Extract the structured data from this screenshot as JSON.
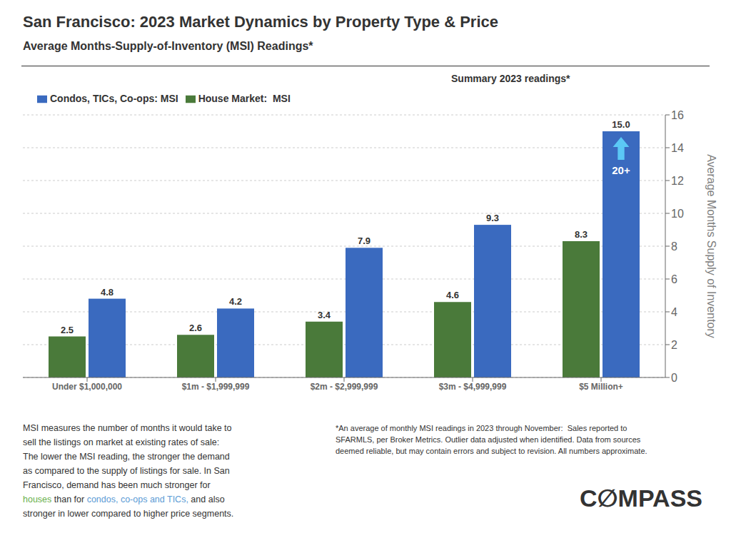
{
  "chart_data": {
    "type": "bar",
    "title": "San Francisco: 2023 Market Dynamics by Property Type & Price",
    "subtitle": "Average Months-Supply-of-Inventory (MSI) Readings*",
    "categories": [
      "Under $1,000,000",
      "$1m - $1,999,999",
      "$2m - $2,999,999",
      "$3m - $4,999,999",
      "$5 Million+"
    ],
    "series": [
      {
        "name": "House Market:  MSI",
        "color": "#4a7a3a",
        "values": [
          2.5,
          2.6,
          3.4,
          4.6,
          8.3
        ]
      },
      {
        "name": "Condos, TICs, Co-ops: MSI",
        "color": "#3a6abf",
        "values": [
          4.8,
          4.2,
          7.9,
          9.3,
          15.0
        ],
        "value_labels": [
          "4.8",
          "4.2",
          "7.9",
          "9.3",
          "15.0"
        ]
      }
    ],
    "ylabel": "Average Months Supply of Inventory",
    "ylim": [
      0,
      16
    ],
    "yticks": [
      0,
      2,
      4,
      6,
      8,
      10,
      12,
      14,
      16
    ],
    "grid": true,
    "legend": "upper left",
    "data_labels": true,
    "annotations": [
      {
        "text": "Summary 2023 readings*"
      },
      {
        "text": "20+",
        "color": "#5bc8f5"
      },
      {
        "lines": [
          [
            {
              "text": "MSI measures the number of months it would take to"
            }
          ],
          [
            {
              "text": "sell the listings on market at existing rates of sale:"
            }
          ],
          [
            {
              "text": "The lower the MSI reading, the stronger the demand"
            }
          ],
          [
            {
              "text": "as compared to the supply of listings for sale. In San"
            }
          ],
          [
            {
              "text": "Francisco, demand has been much stronger for"
            }
          ],
          [
            {
              "text": "houses",
              "color": "#6ab04c"
            },
            {
              "text": " than for "
            },
            {
              "text": "condos, co-ops and TICs,",
              "color": "#5b9bd5"
            },
            {
              "text": " and also"
            }
          ],
          [
            {
              "text": "stronger in "
            },
            {
              "text": "lower"
            },
            {
              "text": " compared to higher price segments."
            }
          ]
        ]
      },
      {
        "text": "*An average of monthly MSI readings in 2023 through November:  Sales reported to\nSFARMLS, per Broker Metrics. Outlier data adjusted when identified. Data from sources\ndeemed reliable, but may contain errors and subject to revision. All numbers approximate."
      },
      {
        "text": "C∅MPASS"
      }
    ]
  }
}
